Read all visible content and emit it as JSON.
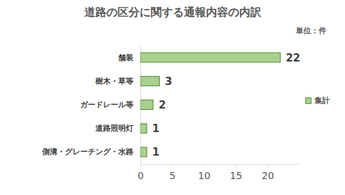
{
  "chart_data": {
    "type": "bar",
    "title": "道路の区分に関する通報内容の内訳",
    "annotations": [
      "単位：件"
    ],
    "orientation": "horizontal",
    "categories": [
      "舗装",
      "樹木・草等",
      "ガードレール等",
      "道路照明灯",
      "側溝・グレーチング・水路"
    ],
    "series": [
      {
        "name": "集計",
        "color": "#a9d18e",
        "values": [
          22,
          3,
          2,
          1,
          1
        ]
      }
    ],
    "xlim": [
      0,
      25
    ],
    "xticks": [
      0,
      5,
      10,
      15,
      20
    ],
    "grid": false,
    "legend": "right",
    "data_labels": true
  }
}
